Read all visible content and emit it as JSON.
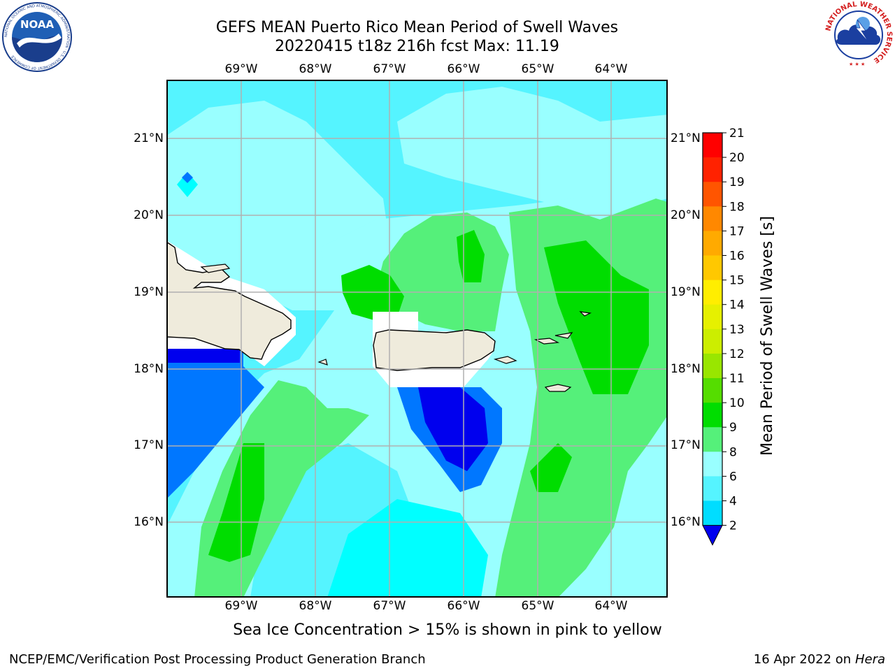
{
  "header": {
    "title_line1": "GEFS MEAN Puerto Rico Mean Period of Swell Waves",
    "title_line2": "20220415 t18z 216h fcst   Max: 11.19"
  },
  "logos": {
    "noara_text": "NOAA",
    "noaa_ring": "NATIONAL OCEANIC AND ATMOSPHERIC ADMINISTRATION · U.S. DEPARTMENT OF COMMERCE",
    "nws_ring": "NATIONAL WEATHER SERVICE"
  },
  "map": {
    "lon_labels": [
      "69°W",
      "68°W",
      "67°W",
      "66°W",
      "65°W",
      "64°W"
    ],
    "lat_labels": [
      "21°N",
      "20°N",
      "19°N",
      "18°N",
      "17°N",
      "16°N"
    ],
    "gridlines": true
  },
  "colorbar": {
    "label": "Mean Period of Swell Waves [s]",
    "ticks": [
      "2",
      "4",
      "6",
      "8",
      "9",
      "10",
      "11",
      "12",
      "13",
      "14",
      "15",
      "16",
      "17",
      "18",
      "19",
      "20",
      "21"
    ],
    "colors": [
      "#0000ee",
      "#0077ff",
      "#00ddff",
      "#55f4ff",
      "#99ffff",
      "#55f07a",
      "#00dd00",
      "#55dd00",
      "#99e600",
      "#ccee00",
      "#e6f000",
      "#ffee00",
      "#ffc800",
      "#ffaa00",
      "#ff8800",
      "#ff5500",
      "#ff2200",
      "#ff0000"
    ],
    "extend": "min"
  },
  "footer": {
    "subtitle": "Sea Ice Concentration > 15% is shown in pink to yellow",
    "credit_left": "NCEP/EMC/Verification Post Processing Product Generation Branch",
    "credit_right_date": "16 Apr 2022 on ",
    "credit_right_host": "Hera"
  }
}
